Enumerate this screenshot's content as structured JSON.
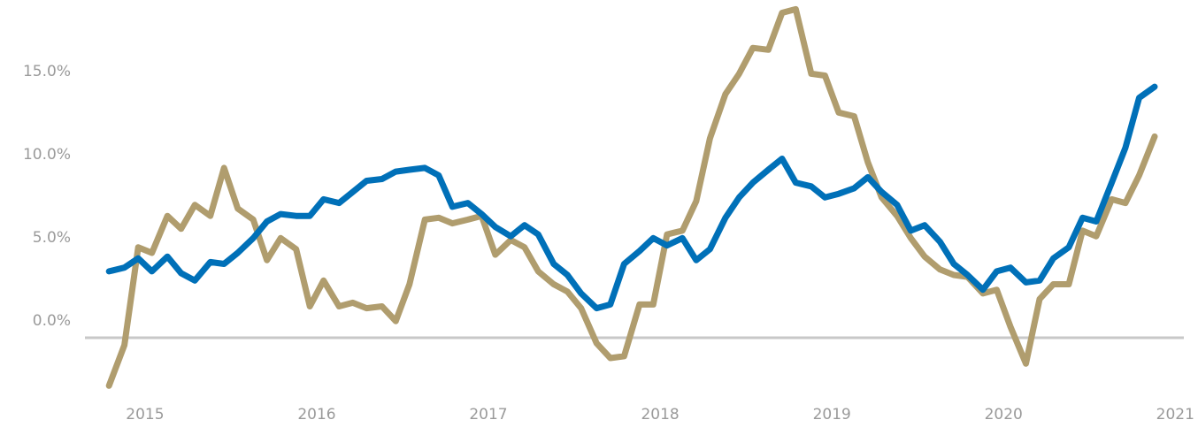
{
  "chart_data": {
    "type": "line",
    "title": "",
    "xlabel": "",
    "ylabel": "",
    "xlim": [
      2014.65,
      2021.05
    ],
    "ylim": [
      -4.5,
      18.2
    ],
    "grid": false,
    "legend": "none",
    "zero_line_color": "#c8c8c8",
    "x_ticks": [
      {
        "value": 2015,
        "label": "2015"
      },
      {
        "value": 2016,
        "label": "2016"
      },
      {
        "value": 2017,
        "label": "2017"
      },
      {
        "value": 2018,
        "label": "2018"
      },
      {
        "value": 2019,
        "label": "2019"
      },
      {
        "value": 2020,
        "label": "2020"
      },
      {
        "value": 2021,
        "label": "2021"
      }
    ],
    "y_ticks": [
      {
        "value": 0,
        "label": "0.0%"
      },
      {
        "value": 5,
        "label": "5.0%"
      },
      {
        "value": 10,
        "label": "10.0%"
      },
      {
        "value": 15,
        "label": "15.0%"
      }
    ],
    "series": [
      {
        "color": "#b09d6e",
        "x": [
          2014.79,
          2014.88,
          2014.96,
          2015.04,
          2015.13,
          2015.21,
          2015.29,
          2015.38,
          2015.46,
          2015.54,
          2015.63,
          2015.71,
          2015.79,
          2015.88,
          2015.96,
          2016.04,
          2016.13,
          2016.21,
          2016.29,
          2016.38,
          2016.46,
          2016.54,
          2016.63,
          2016.71,
          2016.79,
          2016.88,
          2016.96,
          2017.04,
          2017.13,
          2017.21,
          2017.29,
          2017.38,
          2017.46,
          2017.54,
          2017.63,
          2017.71,
          2017.79,
          2017.88,
          2017.96,
          2018.04,
          2018.13,
          2018.21,
          2018.29,
          2018.38,
          2018.46,
          2018.54,
          2018.63,
          2018.71,
          2018.79,
          2018.88,
          2018.96,
          2019.04,
          2019.13,
          2019.21,
          2019.29,
          2019.38,
          2019.46,
          2019.54,
          2019.63,
          2019.71,
          2019.79,
          2019.88,
          2019.96,
          2020.04,
          2020.13,
          2020.21,
          2020.29,
          2020.38,
          2020.46,
          2020.54,
          2020.63,
          2020.71,
          2020.79,
          2020.88
        ],
        "values": [
          -2.6,
          -0.4,
          4.9,
          4.6,
          6.6,
          5.9,
          7.2,
          6.6,
          9.2,
          7.0,
          6.4,
          4.2,
          5.4,
          4.8,
          1.7,
          3.1,
          1.7,
          1.9,
          1.6,
          1.7,
          0.9,
          2.9,
          6.4,
          6.5,
          6.2,
          6.4,
          6.6,
          4.5,
          5.3,
          4.9,
          3.6,
          2.9,
          2.5,
          1.6,
          -0.3,
          -1.1,
          -1.0,
          1.8,
          1.8,
          5.6,
          5.8,
          7.4,
          10.8,
          13.2,
          14.3,
          15.7,
          15.6,
          17.6,
          17.8,
          14.3,
          14.2,
          12.2,
          12.0,
          9.5,
          7.6,
          6.6,
          5.4,
          4.4,
          3.7,
          3.4,
          3.3,
          2.4,
          2.6,
          0.6,
          -1.4,
          2.1,
          2.9,
          2.9,
          5.8,
          5.5,
          7.5,
          7.3,
          8.8,
          10.9
        ]
      },
      {
        "color": "#0070b8",
        "x": [
          2014.79,
          2014.88,
          2014.96,
          2015.04,
          2015.13,
          2015.21,
          2015.29,
          2015.38,
          2015.46,
          2015.54,
          2015.63,
          2015.71,
          2015.79,
          2015.88,
          2015.96,
          2016.04,
          2016.13,
          2016.21,
          2016.29,
          2016.38,
          2016.46,
          2016.54,
          2016.63,
          2016.71,
          2016.79,
          2016.88,
          2016.96,
          2017.04,
          2017.13,
          2017.21,
          2017.29,
          2017.38,
          2017.46,
          2017.54,
          2017.63,
          2017.71,
          2017.79,
          2017.88,
          2017.96,
          2018.04,
          2018.13,
          2018.21,
          2018.29,
          2018.38,
          2018.46,
          2018.54,
          2018.63,
          2018.71,
          2018.79,
          2018.88,
          2018.96,
          2019.04,
          2019.13,
          2019.21,
          2019.29,
          2019.38,
          2019.46,
          2019.54,
          2019.63,
          2019.71,
          2019.79,
          2019.88,
          2019.96,
          2020.04,
          2020.13,
          2020.21,
          2020.29,
          2020.38,
          2020.46,
          2020.54,
          2020.63,
          2020.71,
          2020.79,
          2020.88
        ],
        "values": [
          3.6,
          3.8,
          4.3,
          3.6,
          4.4,
          3.5,
          3.1,
          4.1,
          4.0,
          4.6,
          5.4,
          6.3,
          6.7,
          6.6,
          6.6,
          7.5,
          7.3,
          7.9,
          8.5,
          8.6,
          9.0,
          9.1,
          9.2,
          8.8,
          7.1,
          7.3,
          6.7,
          6.0,
          5.5,
          6.1,
          5.6,
          4.0,
          3.4,
          2.4,
          1.6,
          1.8,
          4.0,
          4.7,
          5.4,
          5.0,
          5.4,
          4.2,
          4.8,
          6.5,
          7.6,
          8.4,
          9.1,
          9.7,
          8.4,
          8.2,
          7.6,
          7.8,
          8.1,
          8.7,
          7.9,
          7.2,
          5.8,
          6.1,
          5.2,
          4.0,
          3.4,
          2.6,
          3.6,
          3.8,
          3.0,
          3.1,
          4.3,
          4.9,
          6.5,
          6.3,
          8.4,
          10.3,
          13.0,
          13.6
        ]
      }
    ]
  }
}
